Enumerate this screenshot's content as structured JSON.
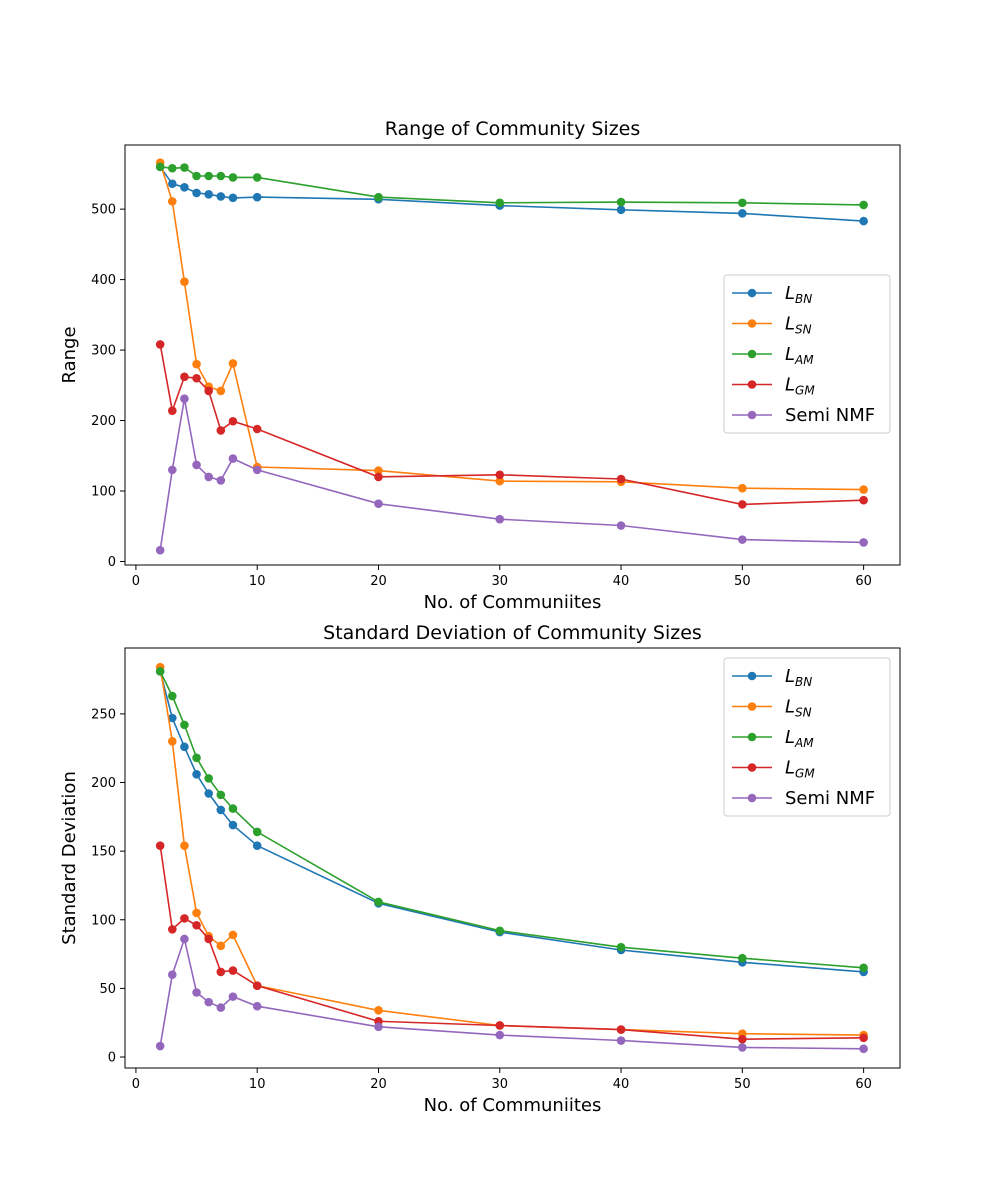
{
  "chart_data": [
    {
      "type": "line",
      "title": "Range of Community Sizes",
      "xlabel": "No. of Communiites",
      "ylabel": "Range",
      "xlim": [
        -0.9,
        63
      ],
      "ylim": [
        -5,
        591
      ],
      "xticks": [
        0,
        10,
        20,
        30,
        40,
        50,
        60
      ],
      "yticks": [
        0,
        100,
        200,
        300,
        400,
        500
      ],
      "legend": "center-right",
      "x": [
        2,
        3,
        4,
        5,
        6,
        7,
        8,
        10,
        20,
        30,
        40,
        50,
        60
      ],
      "series": [
        {
          "name": "L",
          "sub": "BN",
          "color": "#1f77b4",
          "values": [
            560,
            536,
            531,
            523,
            521,
            518,
            516,
            517,
            514,
            505,
            499,
            494,
            483
          ]
        },
        {
          "name": "L",
          "sub": "SN",
          "color": "#ff7f0e",
          "values": [
            566,
            511,
            397,
            280,
            248,
            242,
            281,
            134,
            129,
            114,
            113,
            104,
            102
          ]
        },
        {
          "name": "L",
          "sub": "AM",
          "color": "#2ca02c",
          "values": [
            560,
            558,
            559,
            547,
            547,
            547,
            545,
            545,
            517,
            509,
            510,
            509,
            506
          ]
        },
        {
          "name": "L",
          "sub": "GM",
          "color": "#d62728",
          "values": [
            308,
            214,
            262,
            260,
            242,
            186,
            199,
            188,
            120,
            123,
            117,
            81,
            87
          ]
        },
        {
          "name": "Semi NMF",
          "sub": "",
          "color": "#9467bd",
          "values": [
            16,
            130,
            231,
            137,
            120,
            115,
            146,
            130,
            82,
            60,
            51,
            31,
            27
          ]
        }
      ]
    },
    {
      "type": "line",
      "title": "Standard Deviation of Community Sizes",
      "xlabel": "No. of Communiites",
      "ylabel": "Standard Deviation",
      "xlim": [
        -0.9,
        63
      ],
      "ylim": [
        -8,
        298
      ],
      "xticks": [
        0,
        10,
        20,
        30,
        40,
        50,
        60
      ],
      "yticks": [
        0,
        50,
        100,
        150,
        200,
        250
      ],
      "legend": "top-right",
      "x": [
        2,
        3,
        4,
        5,
        6,
        7,
        8,
        10,
        20,
        30,
        40,
        50,
        60
      ],
      "series": [
        {
          "name": "L",
          "sub": "BN",
          "color": "#1f77b4",
          "values": [
            281,
            247,
            226,
            206,
            192,
            180,
            169,
            154,
            112,
            91,
            78,
            69,
            62
          ]
        },
        {
          "name": "L",
          "sub": "SN",
          "color": "#ff7f0e",
          "values": [
            284,
            230,
            154,
            105,
            88,
            81,
            89,
            52,
            34,
            23,
            20,
            17,
            16
          ]
        },
        {
          "name": "L",
          "sub": "AM",
          "color": "#2ca02c",
          "values": [
            281,
            263,
            242,
            218,
            203,
            191,
            181,
            164,
            113,
            92,
            80,
            72,
            65
          ]
        },
        {
          "name": "L",
          "sub": "GM",
          "color": "#d62728",
          "values": [
            154,
            93,
            101,
            96,
            86,
            62,
            63,
            52,
            26,
            23,
            20,
            13,
            14
          ]
        },
        {
          "name": "Semi NMF",
          "sub": "",
          "color": "#9467bd",
          "values": [
            8,
            60,
            86,
            47,
            40,
            36,
            44,
            37,
            22,
            16,
            12,
            7,
            6
          ]
        }
      ]
    }
  ]
}
